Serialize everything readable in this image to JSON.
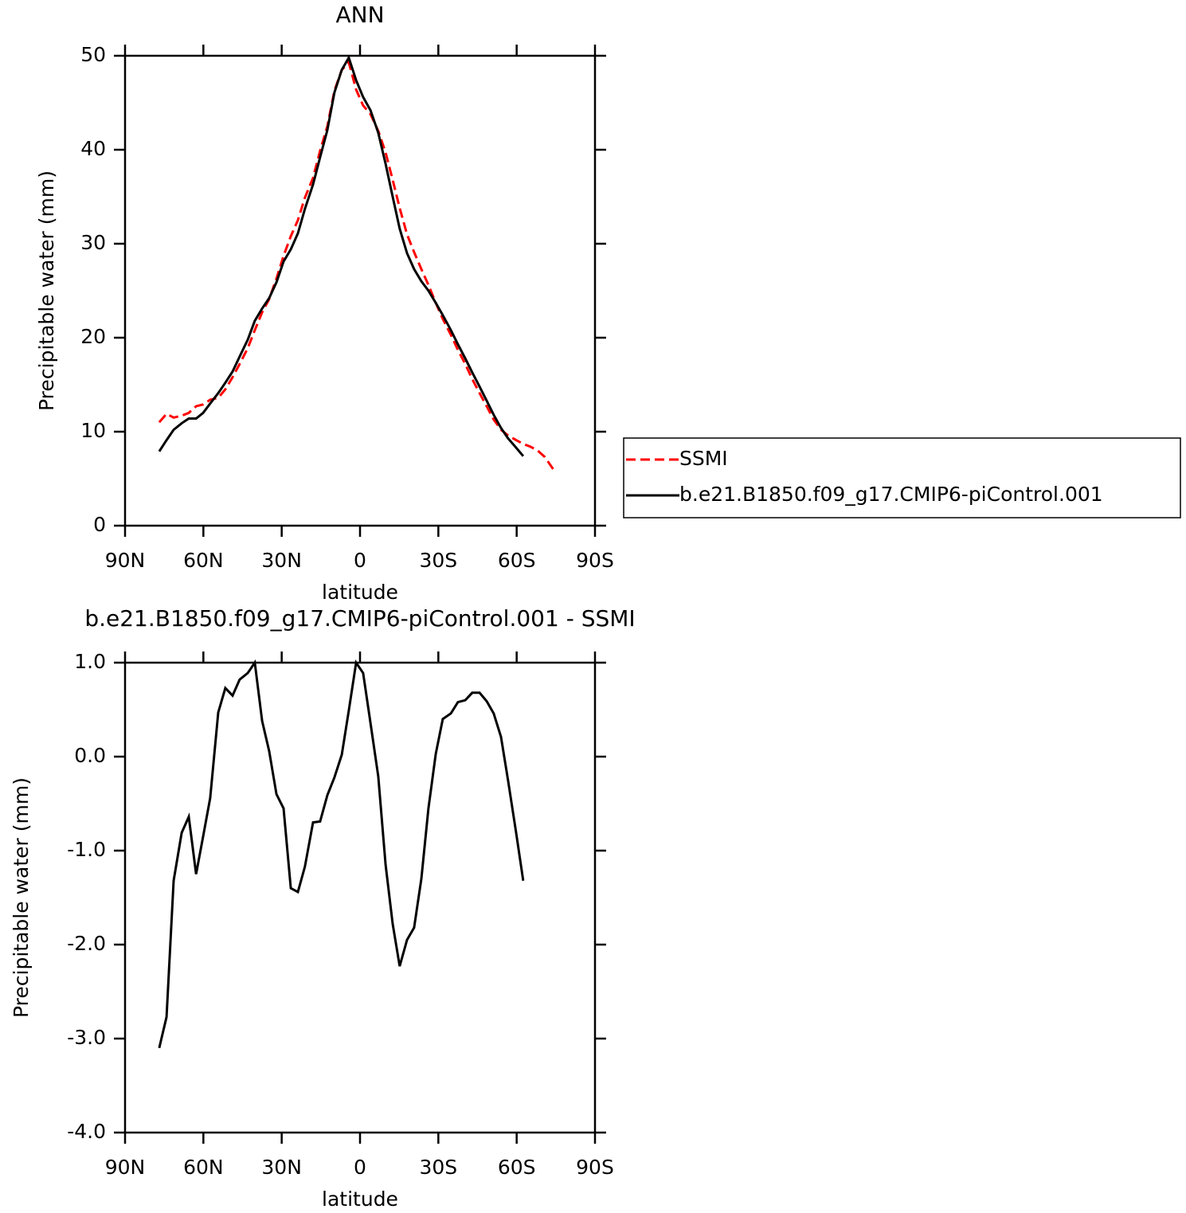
{
  "chart_data": [
    {
      "type": "line",
      "title": "ANN",
      "xlabel": "latitude",
      "ylabel": "Precipitable water (mm)",
      "x": [
        76.9,
        74.1,
        71.4,
        68.3,
        65.6,
        62.8,
        60.1,
        57.4,
        54.3,
        51.6,
        48.8,
        46.1,
        43.0,
        40.3,
        37.5,
        34.8,
        32.0,
        29.3,
        26.5,
        23.8,
        21.1,
        18.0,
        15.3,
        12.5,
        9.8,
        7.0,
        4.3,
        1.5,
        -1.2,
        -4.0,
        -7.0,
        -9.8,
        -12.5,
        -15.2,
        -18.0,
        -20.7,
        -23.5,
        -26.2,
        -29.0,
        -31.7,
        -34.8,
        -37.5,
        -40.3,
        -43.0,
        -45.8,
        -48.5,
        -51.2,
        -54.0,
        -56.7,
        -59.8,
        -62.5,
        -65.3,
        -68.0,
        -70.8,
        -74.0
      ],
      "series": [
        {
          "name": "SSMI",
          "color": "#ff0000",
          "linestyle": "dashed",
          "values": [
            11.0,
            11.9,
            11.5,
            11.7,
            12.0,
            12.7,
            12.9,
            13.4,
            13.6,
            14.5,
            15.8,
            17.2,
            18.9,
            20.8,
            22.7,
            24.1,
            26.3,
            28.7,
            30.8,
            32.5,
            34.9,
            37.0,
            39.9,
            42.5,
            46.3,
            48.5,
            49.3,
            46.4,
            44.7,
            43.8,
            42.0,
            39.7,
            36.8,
            33.8,
            31.0,
            29.1,
            27.3,
            25.6,
            23.7,
            22.0,
            20.3,
            18.7,
            17.2,
            15.6,
            14.1,
            12.7,
            11.3,
            10.2,
            9.6,
            9.1,
            8.7,
            8.4,
            8.0,
            7.3,
            6.0
          ]
        },
        {
          "name": "b.e21.B1850.f09_g17.CMIP6-piControl.001",
          "color": "#000000",
          "linestyle": "solid",
          "values": [
            7.9,
            9.1,
            10.2,
            10.9,
            11.4,
            11.4,
            12.0,
            13.0,
            14.1,
            15.2,
            16.4,
            18.0,
            19.8,
            21.8,
            23.1,
            24.2,
            25.9,
            28.1,
            29.4,
            31.1,
            33.7,
            36.3,
            39.2,
            42.1,
            46.1,
            48.5,
            49.8,
            47.4,
            45.6,
            44.2,
            41.8,
            38.5,
            35.0,
            31.6,
            29.0,
            27.3,
            26.0,
            25.0,
            23.7,
            22.4,
            20.8,
            19.3,
            17.8,
            16.3,
            14.8,
            13.3,
            11.8,
            10.4,
            9.3,
            8.3,
            7.4,
            null,
            null,
            null,
            null
          ]
        }
      ],
      "xlim": [
        90,
        -90
      ],
      "xticks": [
        {
          "value": 90,
          "label": "90N"
        },
        {
          "value": 60,
          "label": "60N"
        },
        {
          "value": 30,
          "label": "30N"
        },
        0,
        {
          "value": -30,
          "label": "30S"
        },
        {
          "value": -60,
          "label": "60S"
        },
        {
          "value": -90,
          "label": "90S"
        }
      ],
      "ylim": [
        0,
        50
      ],
      "yticks": [
        0,
        10,
        20,
        30,
        40,
        50
      ],
      "legend": "right"
    },
    {
      "type": "line",
      "title": "b.e21.B1850.f09_g17.CMIP6-piControl.001 - SSMI",
      "xlabel": "latitude",
      "ylabel": "Precipitable water (mm)",
      "x": [
        76.9,
        74.1,
        71.4,
        68.3,
        65.6,
        62.8,
        60.1,
        57.4,
        54.3,
        51.6,
        48.8,
        46.1,
        43.0,
        40.3,
        37.5,
        34.8,
        32.0,
        29.3,
        26.5,
        23.8,
        21.1,
        18.0,
        15.3,
        12.5,
        9.8,
        7.0,
        4.3,
        1.5,
        -1.2,
        -4.0,
        -7.0,
        -9.8,
        -12.5,
        -15.2,
        -18.0,
        -20.7,
        -23.5,
        -26.2,
        -29.0,
        -31.7,
        -34.8,
        -37.5,
        -40.3,
        -43.0,
        -45.8,
        -48.5,
        -51.2,
        -54.0,
        -56.7,
        -59.8,
        -62.5
      ],
      "series": [
        {
          "color": "#000000",
          "linestyle": "solid",
          "values": [
            -3.1,
            -2.77,
            -1.32,
            -0.81,
            -0.64,
            -1.25,
            -0.85,
            -0.44,
            0.47,
            0.73,
            0.65,
            0.82,
            0.89,
            1.0,
            0.38,
            0.06,
            -0.4,
            -0.55,
            -1.4,
            -1.44,
            -1.17,
            -0.7,
            -0.69,
            -0.41,
            -0.22,
            0.02,
            0.49,
            1.0,
            0.89,
            0.36,
            -0.21,
            -1.15,
            -1.78,
            -2.23,
            -1.95,
            -1.82,
            -1.3,
            -0.55,
            0.03,
            0.4,
            0.46,
            0.58,
            0.6,
            0.68,
            0.68,
            0.59,
            0.46,
            0.21,
            -0.25,
            -0.81,
            -1.32
          ]
        }
      ],
      "xlim": [
        90,
        -90
      ],
      "xticks": [
        {
          "value": 90,
          "label": "90N"
        },
        {
          "value": 60,
          "label": "60N"
        },
        {
          "value": 30,
          "label": "30N"
        },
        0,
        {
          "value": -30,
          "label": "30S"
        },
        {
          "value": -60,
          "label": "60S"
        },
        {
          "value": -90,
          "label": "90S"
        }
      ],
      "ylim": [
        -4,
        1
      ],
      "yticks": [
        {
          "value": -4,
          "label": "-4.0"
        },
        {
          "value": -3,
          "label": "-3.0"
        },
        {
          "value": -2,
          "label": "-2.0"
        },
        {
          "value": -1,
          "label": "-1.0"
        },
        {
          "value": 0,
          "label": "0.0"
        },
        {
          "value": 1,
          "label": "1.0"
        }
      ]
    }
  ]
}
